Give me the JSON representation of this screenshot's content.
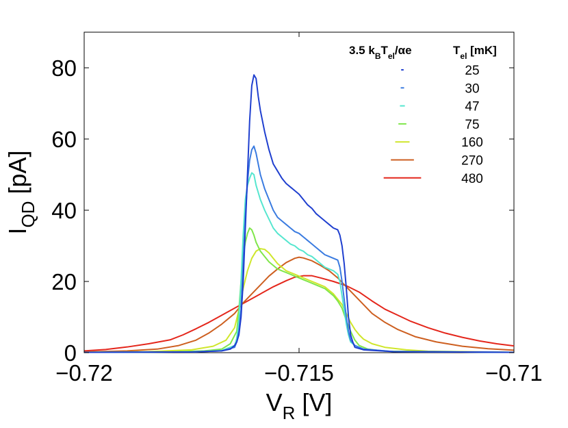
{
  "chart_data": {
    "type": "line",
    "xlabel": {
      "main": "V",
      "sub": "R",
      "unit": " [V]"
    },
    "ylabel": {
      "main": "I",
      "sub": "QD",
      "unit": " [pA]"
    },
    "xlim": [
      -0.72,
      -0.71
    ],
    "ylim": [
      0,
      90
    ],
    "xticks": [
      -0.72,
      -0.715,
      -0.71
    ],
    "xtick_labels": [
      "−0.72",
      "−0.715",
      "−0.71"
    ],
    "yticks": [
      0,
      20,
      40,
      60,
      80
    ],
    "ytick_labels": [
      "0",
      "20",
      "40",
      "60",
      "80"
    ],
    "grid": false,
    "legend": {
      "position": "top-right",
      "title_left": {
        "a": "3.5 k",
        "b": "B",
        "c": "T",
        "d": "el",
        "e": "/αe"
      },
      "title_right": {
        "a": "T",
        "b": "el",
        "c": " [mK]"
      }
    },
    "series": [
      {
        "name": "25",
        "color": "#1f3fcf",
        "legend_width_mV": 5.8e-05,
        "points": [
          [
            -0.72,
            0.1
          ],
          [
            -0.7175,
            0.2
          ],
          [
            -0.7168,
            0.5
          ],
          [
            -0.7166,
            1.0
          ],
          [
            -0.7165,
            2.0
          ],
          [
            -0.71645,
            3.0
          ],
          [
            -0.7164,
            5
          ],
          [
            -0.71635,
            10
          ],
          [
            -0.7163,
            20
          ],
          [
            -0.71625,
            35
          ],
          [
            -0.7162,
            50
          ],
          [
            -0.71615,
            65
          ],
          [
            -0.7161,
            75
          ],
          [
            -0.71605,
            78
          ],
          [
            -0.716,
            77
          ],
          [
            -0.71595,
            72
          ],
          [
            -0.7159,
            68
          ],
          [
            -0.7158,
            62
          ],
          [
            -0.7157,
            57
          ],
          [
            -0.7156,
            53
          ],
          [
            -0.7155,
            51
          ],
          [
            -0.7154,
            49
          ],
          [
            -0.7153,
            47.5
          ],
          [
            -0.7152,
            46.5
          ],
          [
            -0.7151,
            45.5
          ],
          [
            -0.715,
            44.5
          ],
          [
            -0.7149,
            43
          ],
          [
            -0.7148,
            41.5
          ],
          [
            -0.7147,
            40.5
          ],
          [
            -0.7146,
            39
          ],
          [
            -0.7145,
            38
          ],
          [
            -0.7144,
            37
          ],
          [
            -0.7143,
            36
          ],
          [
            -0.7142,
            35
          ],
          [
            -0.7141,
            34.5
          ],
          [
            -0.71405,
            33
          ],
          [
            -0.714,
            30
          ],
          [
            -0.71395,
            25
          ],
          [
            -0.7139,
            18
          ],
          [
            -0.71385,
            10
          ],
          [
            -0.7138,
            5
          ],
          [
            -0.71375,
            3
          ],
          [
            -0.7137,
            1.5
          ],
          [
            -0.7135,
            0.8
          ],
          [
            -0.7128,
            0.3
          ],
          [
            -0.71,
            0.1
          ]
        ]
      },
      {
        "name": "30",
        "color": "#3a7be0",
        "legend_width_mV": 7.9e-05,
        "points": [
          [
            -0.72,
            0.1
          ],
          [
            -0.7175,
            0.2
          ],
          [
            -0.7168,
            0.5
          ],
          [
            -0.7165,
            1.5
          ],
          [
            -0.71645,
            3
          ],
          [
            -0.7164,
            6
          ],
          [
            -0.71635,
            12
          ],
          [
            -0.7163,
            25
          ],
          [
            -0.71625,
            38
          ],
          [
            -0.7162,
            48
          ],
          [
            -0.71615,
            54
          ],
          [
            -0.7161,
            57
          ],
          [
            -0.71605,
            58
          ],
          [
            -0.716,
            56
          ],
          [
            -0.71595,
            53
          ],
          [
            -0.7159,
            50
          ],
          [
            -0.7158,
            46
          ],
          [
            -0.7157,
            43
          ],
          [
            -0.7156,
            40
          ],
          [
            -0.7155,
            38
          ],
          [
            -0.7154,
            37
          ],
          [
            -0.7153,
            36
          ],
          [
            -0.7152,
            35
          ],
          [
            -0.7151,
            34
          ],
          [
            -0.715,
            33.5
          ],
          [
            -0.7149,
            32.5
          ],
          [
            -0.7148,
            31.5
          ],
          [
            -0.7147,
            30.5
          ],
          [
            -0.7146,
            29.5
          ],
          [
            -0.7145,
            28.5
          ],
          [
            -0.7144,
            27.5
          ],
          [
            -0.7143,
            27
          ],
          [
            -0.7142,
            26.5
          ],
          [
            -0.7141,
            26
          ],
          [
            -0.71405,
            24
          ],
          [
            -0.714,
            20
          ],
          [
            -0.71395,
            15
          ],
          [
            -0.7139,
            10
          ],
          [
            -0.71385,
            6
          ],
          [
            -0.7138,
            3.5
          ],
          [
            -0.7137,
            2
          ],
          [
            -0.7135,
            1
          ],
          [
            -0.7128,
            0.3
          ],
          [
            -0.71,
            0.1
          ]
        ]
      },
      {
        "name": "47",
        "color": "#55e6cf",
        "legend_width_mV": 0.000115,
        "points": [
          [
            -0.72,
            0.1
          ],
          [
            -0.7175,
            0.2
          ],
          [
            -0.7168,
            0.6
          ],
          [
            -0.7165,
            2
          ],
          [
            -0.71645,
            4
          ],
          [
            -0.7164,
            9
          ],
          [
            -0.71635,
            20
          ],
          [
            -0.7163,
            33
          ],
          [
            -0.71625,
            43
          ],
          [
            -0.7162,
            47
          ],
          [
            -0.71615,
            49
          ],
          [
            -0.7161,
            50.5
          ],
          [
            -0.71605,
            50
          ],
          [
            -0.716,
            47
          ],
          [
            -0.71595,
            45
          ],
          [
            -0.7159,
            43
          ],
          [
            -0.7158,
            40
          ],
          [
            -0.7157,
            37.5
          ],
          [
            -0.7156,
            35
          ],
          [
            -0.7155,
            33.5
          ],
          [
            -0.7154,
            32.5
          ],
          [
            -0.7153,
            31.5
          ],
          [
            -0.7152,
            30.5
          ],
          [
            -0.7151,
            30
          ],
          [
            -0.715,
            29
          ],
          [
            -0.7149,
            28.5
          ],
          [
            -0.7148,
            27.5
          ],
          [
            -0.7147,
            27
          ],
          [
            -0.7146,
            26
          ],
          [
            -0.7145,
            25
          ],
          [
            -0.7144,
            24
          ],
          [
            -0.7143,
            23.5
          ],
          [
            -0.7142,
            23
          ],
          [
            -0.7141,
            22
          ],
          [
            -0.71405,
            20
          ],
          [
            -0.714,
            16
          ],
          [
            -0.71395,
            12
          ],
          [
            -0.7139,
            8
          ],
          [
            -0.71385,
            5
          ],
          [
            -0.7138,
            3
          ],
          [
            -0.7137,
            2
          ],
          [
            -0.7135,
            1
          ],
          [
            -0.7128,
            0.3
          ],
          [
            -0.71,
            0.1
          ]
        ]
      },
      {
        "name": "75",
        "color": "#7fe64a",
        "legend_width_mV": 0.000186,
        "points": [
          [
            -0.72,
            0.1
          ],
          [
            -0.718,
            0.2
          ],
          [
            -0.7172,
            0.5
          ],
          [
            -0.7168,
            1
          ],
          [
            -0.7166,
            2.5
          ],
          [
            -0.71645,
            6
          ],
          [
            -0.7164,
            12
          ],
          [
            -0.71635,
            20
          ],
          [
            -0.7163,
            27
          ],
          [
            -0.71625,
            31
          ],
          [
            -0.7162,
            33.5
          ],
          [
            -0.71615,
            35
          ],
          [
            -0.7161,
            34.5
          ],
          [
            -0.71605,
            33
          ],
          [
            -0.716,
            31
          ],
          [
            -0.7159,
            28.5
          ],
          [
            -0.7158,
            27
          ],
          [
            -0.7157,
            25.5
          ],
          [
            -0.7156,
            24.5
          ],
          [
            -0.7155,
            23.5
          ],
          [
            -0.7154,
            23
          ],
          [
            -0.7153,
            22.5
          ],
          [
            -0.7152,
            22
          ],
          [
            -0.7151,
            21.5
          ],
          [
            -0.715,
            21
          ],
          [
            -0.7149,
            20.5
          ],
          [
            -0.7148,
            20
          ],
          [
            -0.7147,
            19.5
          ],
          [
            -0.7146,
            19
          ],
          [
            -0.7145,
            18.5
          ],
          [
            -0.7144,
            18
          ],
          [
            -0.7143,
            17
          ],
          [
            -0.7142,
            16
          ],
          [
            -0.7141,
            14.5
          ],
          [
            -0.714,
            12.5
          ],
          [
            -0.7139,
            9
          ],
          [
            -0.7138,
            6
          ],
          [
            -0.7137,
            3.5
          ],
          [
            -0.7136,
            2
          ],
          [
            -0.7134,
            1
          ],
          [
            -0.713,
            0.4
          ],
          [
            -0.71,
            0.1
          ]
        ]
      },
      {
        "name": "160",
        "color": "#cfe62b",
        "legend_width_mV": 0.000334,
        "points": [
          [
            -0.72,
            0.1
          ],
          [
            -0.7185,
            0.3
          ],
          [
            -0.7175,
            0.8
          ],
          [
            -0.717,
            1.8
          ],
          [
            -0.7167,
            3.5
          ],
          [
            -0.7165,
            7
          ],
          [
            -0.7164,
            12
          ],
          [
            -0.7163,
            18
          ],
          [
            -0.7162,
            23
          ],
          [
            -0.7161,
            26.5
          ],
          [
            -0.716,
            28.5
          ],
          [
            -0.7159,
            29.2
          ],
          [
            -0.7158,
            29
          ],
          [
            -0.7157,
            28
          ],
          [
            -0.7156,
            26.5
          ],
          [
            -0.7155,
            25
          ],
          [
            -0.7154,
            24
          ],
          [
            -0.7153,
            23
          ],
          [
            -0.7152,
            22.5
          ],
          [
            -0.7151,
            22
          ],
          [
            -0.715,
            21.5
          ],
          [
            -0.7149,
            21
          ],
          [
            -0.7148,
            20.5
          ],
          [
            -0.7147,
            20
          ],
          [
            -0.7146,
            19.5
          ],
          [
            -0.7145,
            19
          ],
          [
            -0.7144,
            18.5
          ],
          [
            -0.7143,
            17.5
          ],
          [
            -0.7142,
            16.5
          ],
          [
            -0.7141,
            15
          ],
          [
            -0.714,
            13.5
          ],
          [
            -0.7139,
            11
          ],
          [
            -0.7138,
            8.5
          ],
          [
            -0.7137,
            6.5
          ],
          [
            -0.7136,
            5
          ],
          [
            -0.7135,
            3.8
          ],
          [
            -0.7133,
            2.5
          ],
          [
            -0.713,
            1.5
          ],
          [
            -0.7125,
            0.8
          ],
          [
            -0.712,
            0.4
          ],
          [
            -0.71,
            0.1
          ]
        ]
      },
      {
        "name": "270",
        "color": "#cd5f20",
        "legend_width_mV": 0.000536,
        "points": [
          [
            -0.72,
            0.2
          ],
          [
            -0.719,
            0.5
          ],
          [
            -0.7183,
            1
          ],
          [
            -0.7178,
            2
          ],
          [
            -0.7174,
            3.5
          ],
          [
            -0.7171,
            5.5
          ],
          [
            -0.7168,
            8
          ],
          [
            -0.7165,
            11
          ],
          [
            -0.7163,
            14
          ],
          [
            -0.7161,
            16.5
          ],
          [
            -0.7159,
            19
          ],
          [
            -0.7157,
            21.5
          ],
          [
            -0.7155,
            23.5
          ],
          [
            -0.7153,
            25.3
          ],
          [
            -0.7151,
            26.5
          ],
          [
            -0.715,
            26.8
          ],
          [
            -0.7149,
            26.6
          ],
          [
            -0.7147,
            25.8
          ],
          [
            -0.7145,
            24.5
          ],
          [
            -0.7143,
            23
          ],
          [
            -0.7141,
            21
          ],
          [
            -0.7139,
            18.5
          ],
          [
            -0.7137,
            16
          ],
          [
            -0.7135,
            13.5
          ],
          [
            -0.7133,
            11
          ],
          [
            -0.713,
            8.5
          ],
          [
            -0.7127,
            6.5
          ],
          [
            -0.7123,
            4.5
          ],
          [
            -0.7118,
            3
          ],
          [
            -0.7112,
            1.8
          ],
          [
            -0.7106,
            1.1
          ],
          [
            -0.71,
            0.7
          ]
        ]
      },
      {
        "name": "480",
        "color": "#e4261b",
        "legend_width_mV": 0.000871,
        "points": [
          [
            -0.72,
            0.5
          ],
          [
            -0.7195,
            0.9
          ],
          [
            -0.719,
            1.6
          ],
          [
            -0.7185,
            2.5
          ],
          [
            -0.718,
            3.6
          ],
          [
            -0.7177,
            5
          ],
          [
            -0.7174,
            6.7
          ],
          [
            -0.7171,
            8.5
          ],
          [
            -0.7168,
            10.5
          ],
          [
            -0.7165,
            12.5
          ],
          [
            -0.7162,
            14.5
          ],
          [
            -0.7159,
            16.5
          ],
          [
            -0.7156,
            18.5
          ],
          [
            -0.7153,
            20.2
          ],
          [
            -0.7151,
            21.2
          ],
          [
            -0.7149,
            21.6
          ],
          [
            -0.7147,
            21.6
          ],
          [
            -0.7145,
            21
          ],
          [
            -0.7142,
            20
          ],
          [
            -0.7139,
            18.8
          ],
          [
            -0.7136,
            17
          ],
          [
            -0.7133,
            14.5
          ],
          [
            -0.713,
            12.2
          ],
          [
            -0.7127,
            10.5
          ],
          [
            -0.7124,
            8.8
          ],
          [
            -0.712,
            7
          ],
          [
            -0.7116,
            5.5
          ],
          [
            -0.7112,
            4.3
          ],
          [
            -0.7108,
            3.3
          ],
          [
            -0.7104,
            2.5
          ],
          [
            -0.71,
            1.9
          ]
        ]
      }
    ]
  }
}
